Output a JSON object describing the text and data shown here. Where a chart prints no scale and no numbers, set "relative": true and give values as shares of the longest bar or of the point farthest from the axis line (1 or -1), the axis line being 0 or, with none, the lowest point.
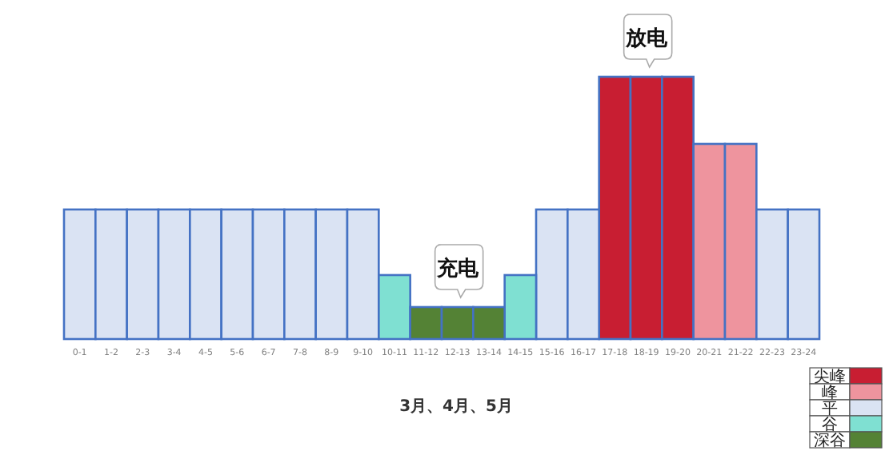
{
  "chart_data": {
    "type": "bar",
    "relative": true,
    "xlabel": "3月、4月、5月",
    "legend": "bottom right",
    "categories": [
      "0-1",
      "1-2",
      "2-3",
      "3-4",
      "4-5",
      "5-6",
      "6-7",
      "7-8",
      "8-9",
      "9-10",
      "10-11",
      "11-12",
      "12-13",
      "13-14",
      "14-15",
      "15-16",
      "16-17",
      "17-18",
      "18-19",
      "19-20",
      "20-21",
      "21-22",
      "22-23",
      "23-24"
    ],
    "series": [
      {
        "name": "尖峰",
        "color": "#c81e32",
        "values": [
          null,
          null,
          null,
          null,
          null,
          null,
          null,
          null,
          null,
          null,
          null,
          null,
          null,
          null,
          null,
          null,
          null,
          1,
          1,
          1,
          null,
          null,
          null,
          null
        ]
      },
      {
        "name": "峰",
        "color": "#ee949e",
        "values": [
          null,
          null,
          null,
          null,
          null,
          null,
          null,
          null,
          null,
          null,
          null,
          null,
          null,
          null,
          null,
          null,
          null,
          null,
          null,
          null,
          0.744,
          0.744,
          null,
          null
        ]
      },
      {
        "name": "平",
        "color": "#dae3f3",
        "values": [
          0.494,
          0.494,
          0.494,
          0.494,
          0.494,
          0.494,
          0.494,
          0.494,
          0.494,
          0.494,
          null,
          null,
          null,
          null,
          null,
          0.494,
          0.494,
          null,
          null,
          null,
          null,
          null,
          0.494,
          0.494
        ]
      },
      {
        "name": "谷",
        "color": "#7fe0d2",
        "values": [
          null,
          null,
          null,
          null,
          null,
          null,
          null,
          null,
          null,
          null,
          0.244,
          null,
          null,
          null,
          0.244,
          null,
          null,
          null,
          null,
          null,
          null,
          null,
          null,
          null
        ]
      },
      {
        "name": "深谷",
        "color": "#548235",
        "values": [
          null,
          null,
          null,
          null,
          null,
          null,
          null,
          null,
          null,
          null,
          null,
          0.122,
          0.122,
          0.122,
          null,
          null,
          null,
          null,
          null,
          null,
          null,
          null,
          null,
          null
        ]
      }
    ],
    "annotations": [
      {
        "text": "放电",
        "x": "18-19",
        "y": 1
      },
      {
        "text": "充电",
        "x": "12-13",
        "y": 0.122
      }
    ]
  }
}
